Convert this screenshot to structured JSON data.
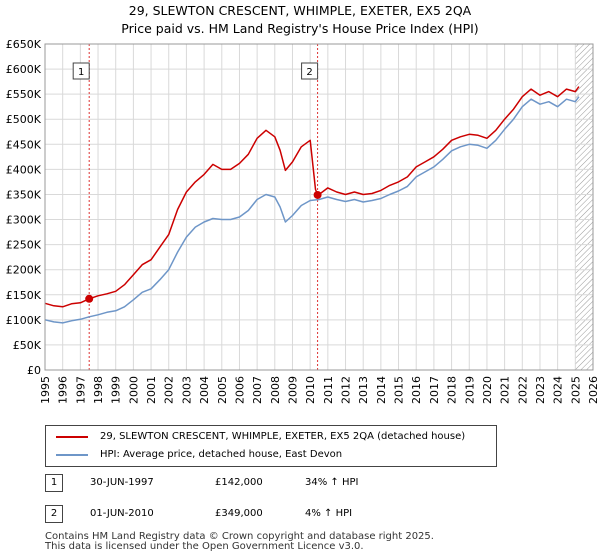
{
  "chart_data": {
    "type": "line",
    "title": "29, SLEWTON CRESCENT, WHIMPLE, EXETER, EX5 2QA",
    "subtitle": "Price paid vs. HM Land Registry's House Price Index (HPI)",
    "xlim": [
      1995,
      2026
    ],
    "ylim": [
      0,
      650000
    ],
    "y_ticks": [
      0,
      50000,
      100000,
      150000,
      200000,
      250000,
      300000,
      350000,
      400000,
      450000,
      500000,
      550000,
      600000,
      650000
    ],
    "y_tick_labels": [
      "£0",
      "£50K",
      "£100K",
      "£150K",
      "£200K",
      "£250K",
      "£300K",
      "£350K",
      "£400K",
      "£450K",
      "£500K",
      "£550K",
      "£600K",
      "£650K"
    ],
    "x_ticks": [
      1995,
      1996,
      1997,
      1998,
      1999,
      2000,
      2001,
      2002,
      2003,
      2004,
      2005,
      2006,
      2007,
      2008,
      2009,
      2010,
      2011,
      2012,
      2013,
      2014,
      2015,
      2016,
      2017,
      2018,
      2019,
      2020,
      2021,
      2022,
      2023,
      2024,
      2025,
      2026
    ],
    "x_tick_labels": [
      "1995",
      "1996",
      "1997",
      "1998",
      "1999",
      "2000",
      "2001",
      "2002",
      "2003",
      "2004",
      "2005",
      "2006",
      "2007",
      "2008",
      "2009",
      "2010",
      "2011",
      "2012",
      "2013",
      "2014",
      "2015",
      "2016",
      "2017",
      "2018",
      "2019",
      "2020",
      "2021",
      "2022",
      "2023",
      "2024",
      "2025",
      "2026"
    ],
    "grid": true,
    "series": [
      {
        "name": "29, SLEWTON CRESCENT, WHIMPLE, EXETER, EX5 2QA (detached house)",
        "color": "#cc0000",
        "x": [
          1995.0,
          1995.5,
          1996.0,
          1996.5,
          1997.0,
          1997.5,
          1998.0,
          1998.5,
          1999.0,
          1999.5,
          2000.0,
          2000.5,
          2001.0,
          2001.5,
          2002.0,
          2002.5,
          2003.0,
          2003.5,
          2004.0,
          2004.5,
          2005.0,
          2005.5,
          2006.0,
          2006.5,
          2007.0,
          2007.5,
          2008.0,
          2008.3,
          2008.6,
          2009.0,
          2009.5,
          2010.0,
          2010.3,
          2010.42,
          2010.5,
          2011.0,
          2011.5,
          2012.0,
          2012.5,
          2013.0,
          2013.5,
          2014.0,
          2014.5,
          2015.0,
          2015.5,
          2016.0,
          2016.5,
          2017.0,
          2017.5,
          2018.0,
          2018.5,
          2019.0,
          2019.5,
          2020.0,
          2020.5,
          2021.0,
          2021.5,
          2022.0,
          2022.5,
          2023.0,
          2023.5,
          2024.0,
          2024.5,
          2025.0,
          2025.2
        ],
        "values": [
          133000,
          128000,
          126000,
          132000,
          134000,
          142000,
          148000,
          152000,
          157000,
          170000,
          190000,
          210000,
          220000,
          245000,
          270000,
          320000,
          355000,
          375000,
          390000,
          410000,
          400000,
          400000,
          412000,
          430000,
          462000,
          478000,
          465000,
          438000,
          398000,
          415000,
          445000,
          458000,
          360000,
          349000,
          350000,
          363000,
          355000,
          350000,
          355000,
          350000,
          352000,
          358000,
          368000,
          375000,
          385000,
          405000,
          415000,
          425000,
          440000,
          458000,
          465000,
          470000,
          468000,
          462000,
          478000,
          500000,
          520000,
          545000,
          560000,
          548000,
          555000,
          545000,
          560000,
          555000,
          565000
        ]
      },
      {
        "name": "HPI: Average price, detached house, East Devon",
        "color": "#6e96c8",
        "x": [
          1995.0,
          1995.5,
          1996.0,
          1996.5,
          1997.0,
          1997.5,
          1998.0,
          1998.5,
          1999.0,
          1999.5,
          2000.0,
          2000.5,
          2001.0,
          2001.5,
          2002.0,
          2002.5,
          2003.0,
          2003.5,
          2004.0,
          2004.5,
          2005.0,
          2005.5,
          2006.0,
          2006.5,
          2007.0,
          2007.5,
          2008.0,
          2008.3,
          2008.6,
          2009.0,
          2009.5,
          2010.0,
          2010.5,
          2011.0,
          2011.5,
          2012.0,
          2012.5,
          2013.0,
          2013.5,
          2014.0,
          2014.5,
          2015.0,
          2015.5,
          2016.0,
          2016.5,
          2017.0,
          2017.5,
          2018.0,
          2018.5,
          2019.0,
          2019.5,
          2020.0,
          2020.5,
          2021.0,
          2021.5,
          2022.0,
          2022.5,
          2023.0,
          2023.5,
          2024.0,
          2024.5,
          2025.0,
          2025.2
        ],
        "values": [
          100000,
          96000,
          94000,
          98000,
          101000,
          106000,
          110000,
          115000,
          118000,
          126000,
          140000,
          155000,
          162000,
          180000,
          200000,
          235000,
          265000,
          285000,
          295000,
          302000,
          300000,
          300000,
          305000,
          318000,
          340000,
          350000,
          345000,
          325000,
          295000,
          308000,
          328000,
          338000,
          340000,
          345000,
          340000,
          336000,
          340000,
          335000,
          338000,
          342000,
          350000,
          357000,
          366000,
          385000,
          395000,
          405000,
          420000,
          437000,
          445000,
          450000,
          448000,
          442000,
          458000,
          480000,
          500000,
          525000,
          540000,
          530000,
          535000,
          525000,
          540000,
          535000,
          545000
        ]
      }
    ],
    "sales": [
      {
        "label": "1",
        "year": 1997.5,
        "price": 142000,
        "date": "30-JUN-1997",
        "price_text": "£142,000",
        "hpi": "34% ↑ HPI"
      },
      {
        "label": "2",
        "year": 2010.42,
        "price": 349000,
        "date": "01-JUN-2010",
        "price_text": "£349,000",
        "hpi": "4% ↑ HPI"
      }
    ],
    "hatch_start": 2025.0
  },
  "legend": {
    "line1": "29, SLEWTON CRESCENT, WHIMPLE, EXETER, EX5 2QA (detached house)",
    "line2": "HPI: Average price, detached house, East Devon"
  },
  "footer": "Contains HM Land Registry data © Crown copyright and database right 2025.\nThis data is licensed under the Open Government Licence v3.0."
}
